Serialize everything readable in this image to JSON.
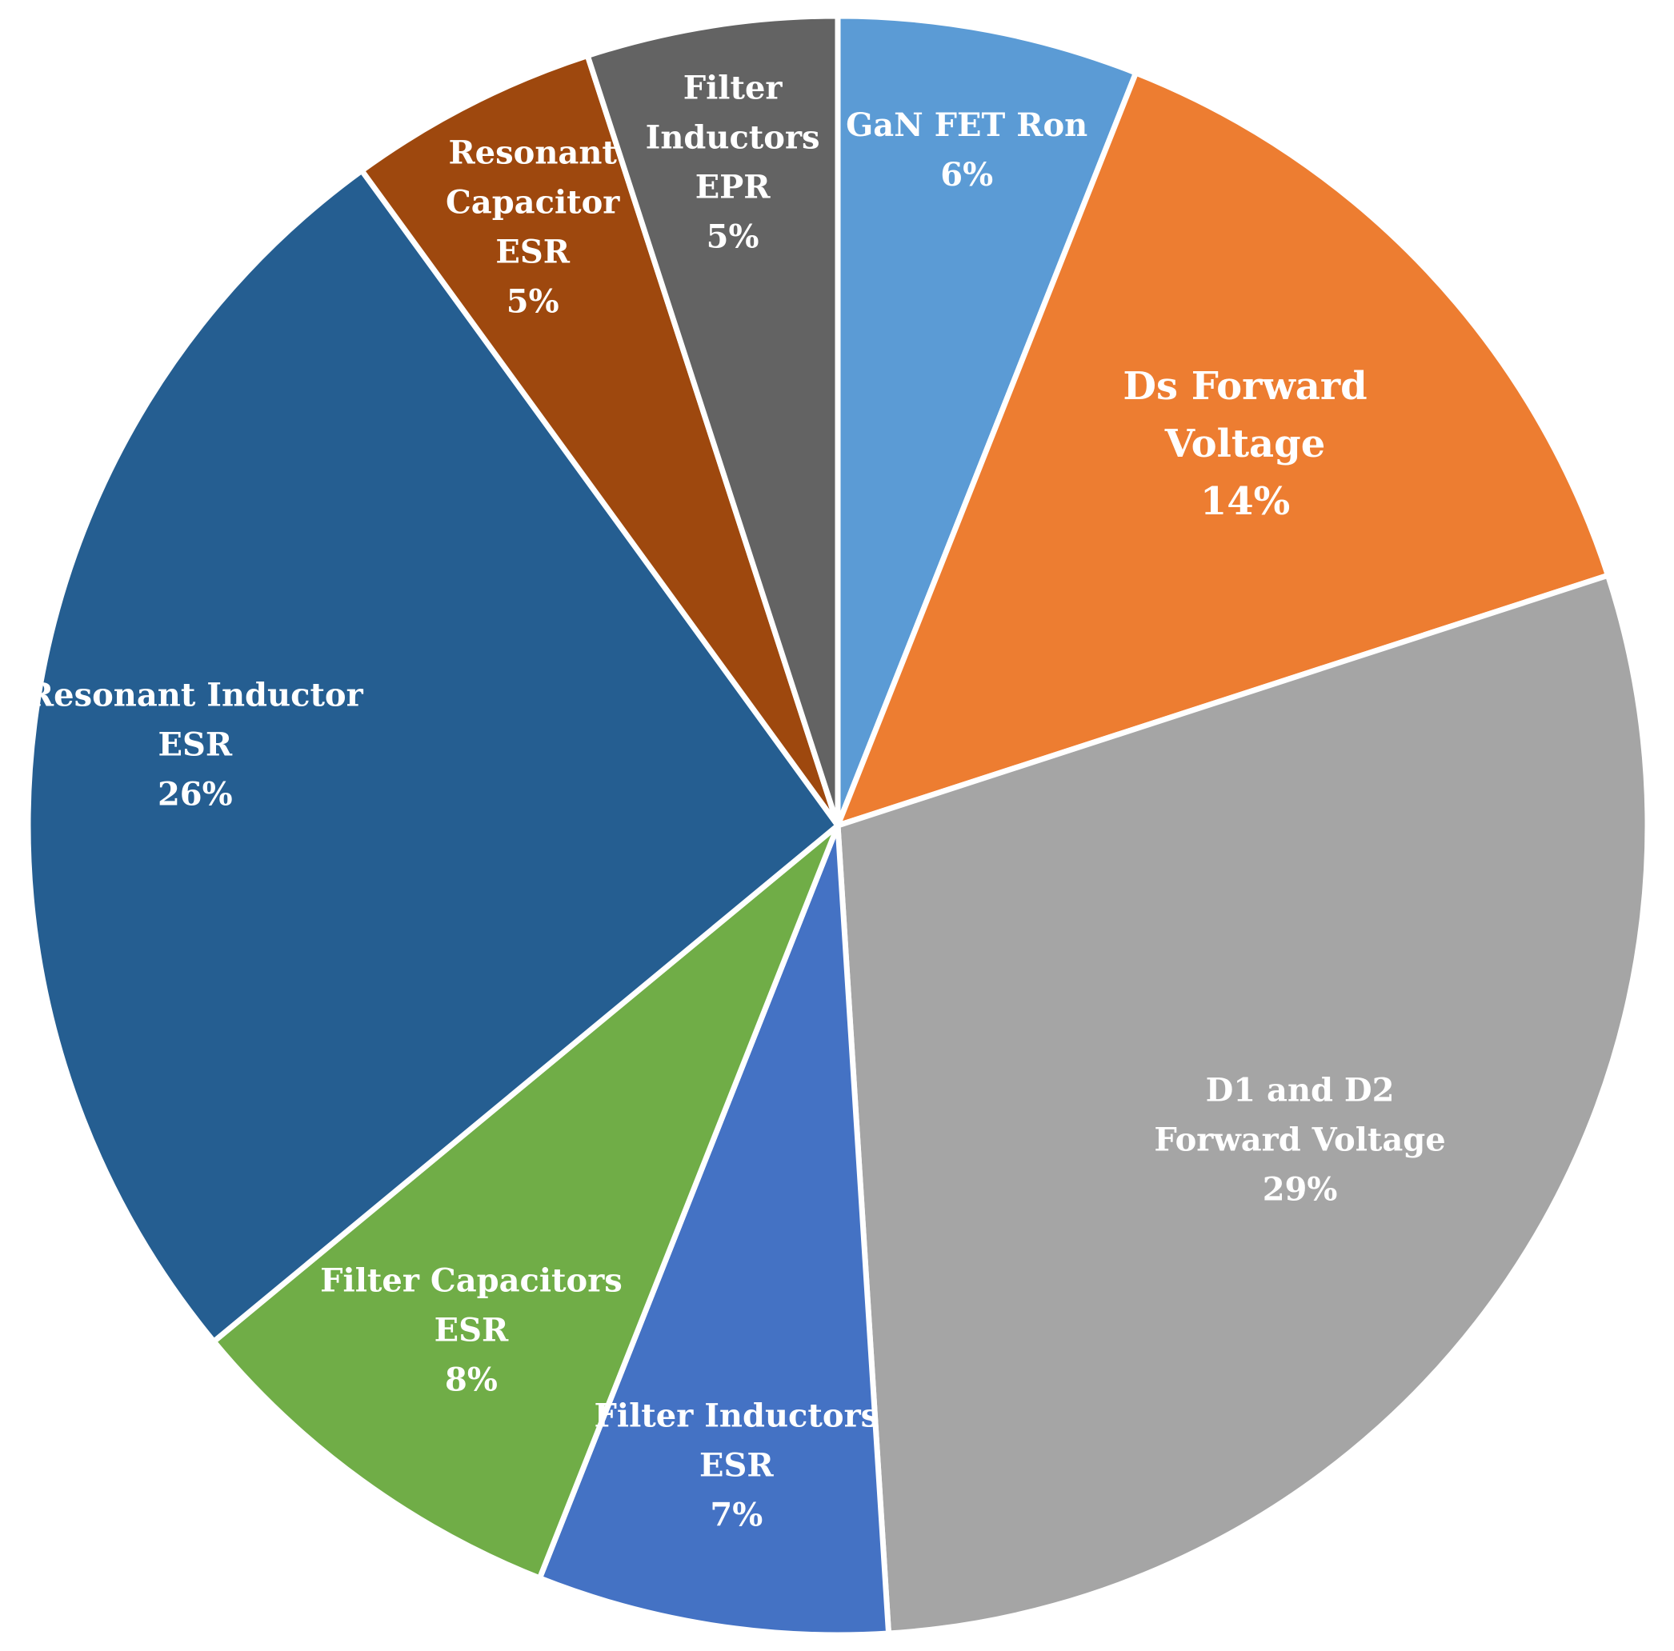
{
  "chart_data": {
    "type": "pie",
    "title": "",
    "legend": "none",
    "slices": [
      {
        "name": "GaN FET Ron",
        "lines": [
          "GaN FET Ron"
        ],
        "value": 6,
        "value_label": "6%",
        "color": "#5B9BD5"
      },
      {
        "name": "Ds Forward Voltage",
        "lines": [
          "Ds Forward",
          "Voltage"
        ],
        "value": 14,
        "value_label": "14%",
        "color": "#ED7D31"
      },
      {
        "name": "D1 and D2 Forward Voltage",
        "lines": [
          "D1 and D2",
          "Forward Voltage"
        ],
        "value": 29,
        "value_label": "29%",
        "color": "#A5A5A5"
      },
      {
        "name": "Filter Inductors ESR",
        "lines": [
          "Filter Inductors",
          "ESR"
        ],
        "value": 7,
        "value_label": "7%",
        "color": "#4472C4"
      },
      {
        "name": "Filter Capacitors ESR",
        "lines": [
          "Filter Capacitors",
          "ESR"
        ],
        "value": 8,
        "value_label": "8%",
        "color": "#70AD47"
      },
      {
        "name": "Resonant Inductor ESR",
        "lines": [
          "Resonant Inductor",
          "ESR"
        ],
        "value": 26,
        "value_label": "26%",
        "color": "#255E91"
      },
      {
        "name": "Resonant Capacitor ESR",
        "lines": [
          "Resonant",
          "Capacitor",
          "ESR"
        ],
        "value": 5,
        "value_label": "5%",
        "color": "#9E480E"
      },
      {
        "name": "Filter Inductors EPR",
        "lines": [
          "Filter",
          "Inductors",
          "EPR"
        ],
        "value": 5,
        "value_label": "5%",
        "color": "#636363"
      }
    ]
  }
}
